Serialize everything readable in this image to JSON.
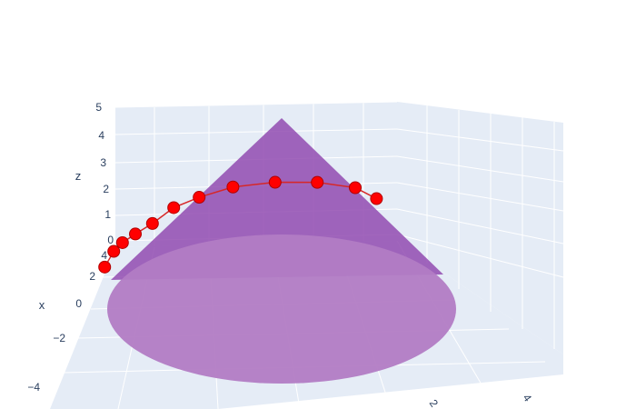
{
  "chart_data": {
    "type": "scatter3d",
    "title": "",
    "grid": true,
    "axes": {
      "z": {
        "title": "z",
        "range": [
          0,
          5
        ],
        "ticks": [
          "0",
          "1",
          "2",
          "3",
          "4",
          "5"
        ]
      },
      "x": {
        "title": "x",
        "range": [
          -4,
          4
        ],
        "ticks": [
          "4",
          "2",
          "0",
          "−2",
          "−4"
        ]
      },
      "y": {
        "title": "",
        "ticks": [
          "2",
          "4"
        ]
      }
    },
    "surfaces": [
      {
        "name": "",
        "shape": "cone",
        "apex_z": 5,
        "base_radius": 5,
        "color": "#8e44ad",
        "opacity": 0.7
      }
    ],
    "series": [
      {
        "name": "",
        "color": "#ff0000",
        "line_color": "#d62728",
        "points": [
          [
            -4.3,
            0.0,
            0.1
          ],
          [
            -4.1,
            0.2,
            0.55
          ],
          [
            -3.9,
            0.3,
            0.8
          ],
          [
            -3.6,
            0.4,
            1.05
          ],
          [
            -3.2,
            0.5,
            1.35
          ],
          [
            -2.7,
            0.6,
            1.8
          ],
          [
            -2.1,
            0.7,
            2.1
          ],
          [
            -1.3,
            0.8,
            2.4
          ],
          [
            -0.3,
            0.9,
            2.55
          ],
          [
            0.7,
            1.0,
            2.55
          ],
          [
            1.6,
            1.1,
            2.4
          ],
          [
            2.1,
            1.2,
            2.1
          ]
        ]
      }
    ]
  }
}
